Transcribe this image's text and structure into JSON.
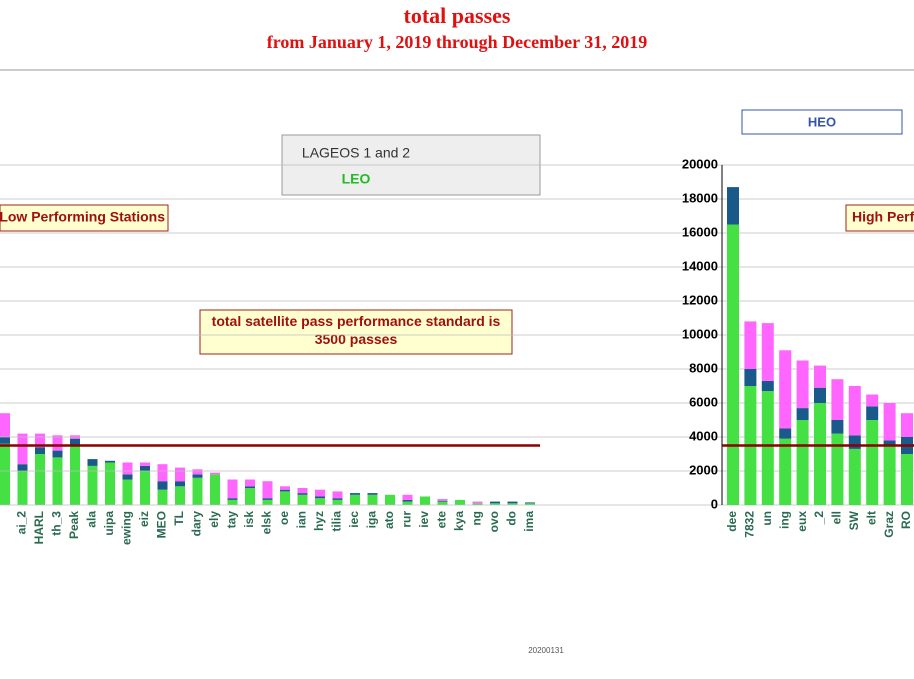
{
  "title": "total passes",
  "subtitle": "from January 1, 2019 through December 31, 2019",
  "footer": "20200131",
  "chart_data": [
    {
      "type": "bar",
      "stacked": true,
      "annotation": "Low Performing Stations",
      "note": "total satellite pass performance standard is 3500 passes",
      "threshold": 3500,
      "threshold_color": "#8b0000",
      "ylim": [
        0,
        20000
      ],
      "categories": [
        null,
        "ai_2",
        "HARL",
        "th_3",
        "Peak",
        "ala",
        "uipa",
        "ewing",
        "eiz",
        "MEO",
        "TL",
        "dary",
        "ely",
        "tay",
        "isk",
        "elsk",
        "oe",
        "ian",
        "hyz",
        "tilia",
        "iec",
        "iga",
        "ato",
        "rur",
        "iev",
        "ete",
        "kya",
        "ng",
        "ovo",
        "do",
        "ima"
      ],
      "series": [
        {
          "name": "LEO",
          "color": "#44e044",
          "values": [
            3600,
            2000,
            3000,
            2800,
            3500,
            2300,
            2500,
            1500,
            2000,
            900,
            1100,
            1600,
            1800,
            300,
            1000,
            300,
            800,
            600,
            400,
            300,
            600,
            600,
            600,
            200,
            500,
            200,
            300,
            100,
            100,
            100,
            100
          ]
        },
        {
          "name": "LAGEOS 1 and 2",
          "color": "#1a5a8a",
          "values": [
            400,
            400,
            400,
            400,
            400,
            400,
            100,
            300,
            300,
            500,
            300,
            200,
            0,
            100,
            100,
            100,
            100,
            100,
            100,
            100,
            100,
            100,
            0,
            100,
            0,
            50,
            0,
            0,
            100,
            100,
            50
          ]
        },
        {
          "name": "HEO",
          "color": "#ff66ff",
          "values": [
            1400,
            1800,
            800,
            900,
            200,
            0,
            0,
            700,
            200,
            1000,
            800,
            300,
            100,
            1100,
            400,
            1000,
            200,
            300,
            400,
            400,
            0,
            0,
            0,
            300,
            0,
            100,
            0,
            100,
            0,
            0,
            0
          ]
        }
      ]
    },
    {
      "type": "bar",
      "stacked": true,
      "annotation": "High Performing Stations",
      "threshold": 3500,
      "threshold_color": "#8b0000",
      "ylim": [
        0,
        20000
      ],
      "yticks": [
        0,
        2000,
        4000,
        6000,
        8000,
        10000,
        12000,
        14000,
        16000,
        18000,
        20000
      ],
      "grid": true,
      "categories": [
        "dee",
        "7832",
        "un",
        "ing",
        "eux",
        "_2",
        "ell",
        "SW",
        "elt",
        "Graz",
        "RO"
      ],
      "series": [
        {
          "name": "LEO",
          "color": "#44e044",
          "values": [
            16500,
            7000,
            6700,
            3900,
            5000,
            6000,
            4200,
            3300,
            5000,
            3500,
            3000
          ]
        },
        {
          "name": "LAGEOS 1 and 2",
          "color": "#1a5a8a",
          "values": [
            2200,
            1000,
            600,
            600,
            700,
            900,
            800,
            800,
            800,
            300,
            1000
          ]
        },
        {
          "name": "HEO",
          "color": "#ff66ff",
          "values": [
            0,
            2800,
            3400,
            4600,
            2800,
            1300,
            2400,
            2900,
            700,
            2200,
            1400
          ]
        }
      ]
    }
  ]
}
